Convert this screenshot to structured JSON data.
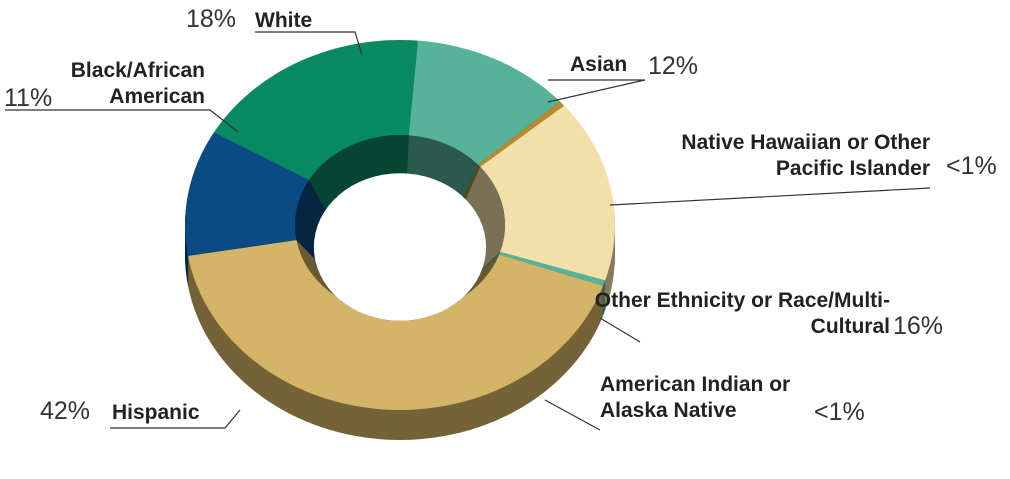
{
  "chart_data": {
    "type": "donut",
    "categories": [
      "White",
      "Asian",
      "Native Hawaiian or Other Pacific Islander",
      "Other Ethnicity or Race/Multi-Cultural",
      "American Indian or Alaska Native",
      "Hispanic",
      "Black/African American"
    ],
    "values": [
      18,
      12,
      0.5,
      16,
      0.5,
      42,
      11
    ],
    "value_labels": [
      "18%",
      "12%",
      "<1%",
      "16%",
      "<1%",
      "42%",
      "11%"
    ],
    "colors": [
      "#0a8a62",
      "#56b39a",
      "#b58b30",
      "#f3dfaa",
      "#56b39a",
      "#d4b466",
      "#0b4a82"
    ]
  }
}
